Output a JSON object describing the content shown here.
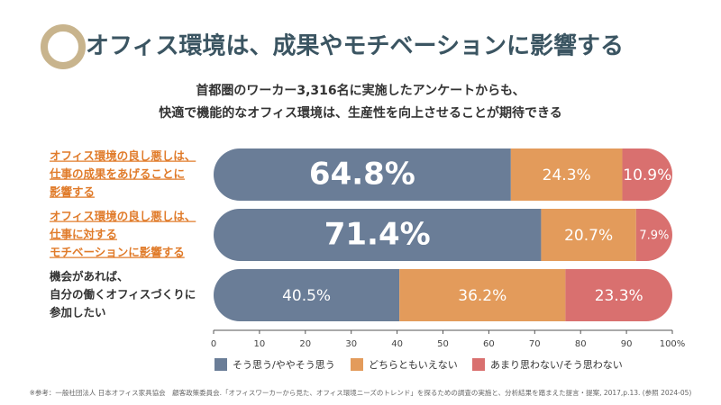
{
  "chart_data": {
    "type": "stacked-bar-horizontal",
    "title": "オフィス環境は、成果やモチベーションに影響する",
    "subtitle": [
      "首都圏のワーカー3,316名に実施したアンケートからも、",
      "快適で機能的なオフィス環境は、生産性を向上させることが期待できる"
    ],
    "categories": [
      [
        "オフィス環境の良し悪しは、",
        "仕事の成果をあげることに",
        "影響する"
      ],
      [
        "オフィス環境の良し悪しは、",
        "仕事に対する",
        "モチベーションに影響する"
      ],
      [
        "機会があれば、",
        "自分の働くオフィスづくりに",
        "参加したい"
      ]
    ],
    "series": [
      {
        "name": "そう思う/ややそう思う",
        "color": "#6a7d97",
        "values": [
          64.8,
          71.4,
          40.5
        ],
        "value_labels": [
          "64.8%",
          "71.4%",
          "40.5%"
        ]
      },
      {
        "name": "どちらともいえない",
        "color": "#e39b5b",
        "values": [
          24.3,
          20.7,
          36.2
        ],
        "value_labels": [
          "24.3%",
          "20.7%",
          "36.2%"
        ]
      },
      {
        "name": "あまり思わない/そう思わない",
        "color": "#d9706f",
        "values": [
          10.9,
          7.9,
          23.3
        ],
        "value_labels": [
          "10.9%",
          "7.9%",
          "23.3%"
        ]
      }
    ],
    "xlim": [
      0,
      100
    ],
    "xticks": [
      0,
      10,
      20,
      30,
      40,
      50,
      60,
      70,
      80,
      90,
      {
        "value": 100,
        "label": "100%"
      }
    ],
    "footnote": "※参考：一般社団法人 日本オフィス家具協会　顧客政策委員会.「オフィスワーカーから見た、オフィス環境ニーズのトレンド」を探るための調査の実施と、分析結果を踏まえた提言・提案, 2017,p.13. (参照 2024-05)"
  }
}
